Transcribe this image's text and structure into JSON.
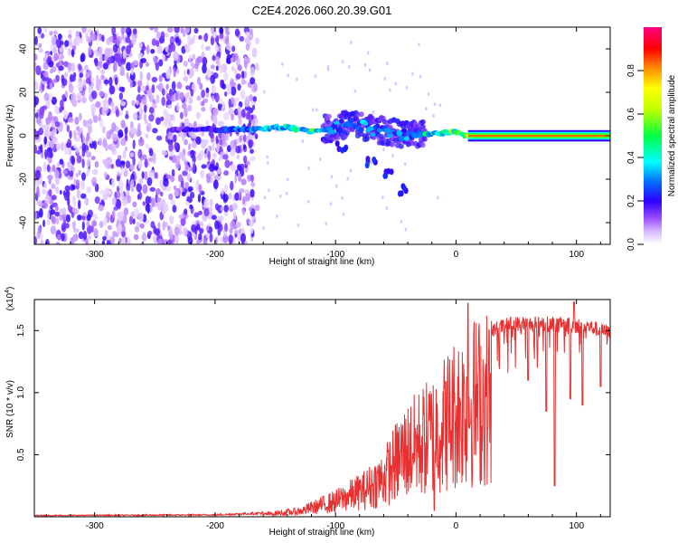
{
  "title": "C2E4.2026.060.20.39.G01",
  "chart_data": [
    {
      "type": "heatmap",
      "name": "spectrogram",
      "xlabel": "Height of straight line (km)",
      "ylabel": "Frequency (Hz)",
      "xlim": [
        -350,
        128
      ],
      "ylim": [
        -50,
        50
      ],
      "xticks": [
        -300,
        -200,
        -100,
        0,
        100
      ],
      "yticks": [
        -40,
        -20,
        0,
        20,
        40
      ],
      "colorbar": {
        "label": "Normalized spectral amplitude",
        "range": [
          0,
          1
        ],
        "ticks": [
          0.0,
          0.2,
          0.4,
          0.6,
          0.8
        ],
        "colormap": "rainbow (violet-blue-cyan-green-yellow-orange-red-magenta)"
      },
      "features": {
        "noise_region_x": [
          -350,
          -165
        ],
        "noise_amplitude": 0.15,
        "carrier_track": [
          {
            "x": -235,
            "f": 3,
            "amp": 0.15
          },
          {
            "x": -200,
            "f": 3,
            "amp": 0.25
          },
          {
            "x": -165,
            "f": 3,
            "amp": 0.35
          },
          {
            "x": -140,
            "f": 4,
            "amp": 0.4
          },
          {
            "x": -120,
            "f": 2,
            "amp": 0.5
          },
          {
            "x": -100,
            "f": 4,
            "amp": 0.3
          },
          {
            "x": -85,
            "f": 6,
            "amp": 0.3
          },
          {
            "x": -70,
            "f": 3,
            "amp": 0.35
          },
          {
            "x": -55,
            "f": 2,
            "amp": 0.3
          },
          {
            "x": -40,
            "f": 0,
            "amp": 0.35
          },
          {
            "x": -20,
            "f": 1,
            "amp": 0.5
          },
          {
            "x": 0,
            "f": 2,
            "amp": 0.55
          },
          {
            "x": 10,
            "f": 0,
            "amp": 0.7
          },
          {
            "x": 128,
            "f": 0,
            "amp": 0.9
          }
        ],
        "descending_branch": [
          {
            "x": -95,
            "f": -5
          },
          {
            "x": -70,
            "f": -12
          },
          {
            "x": -55,
            "f": -18
          },
          {
            "x": -45,
            "f": -25
          }
        ]
      }
    },
    {
      "type": "line",
      "name": "snr",
      "xlabel": "Height of straight line (km)",
      "ylabel": "SNR (10 * v/v)",
      "yscale_label": "(x10",
      "yscale_exponent": "4",
      "xlim": [
        -350,
        128
      ],
      "ylim": [
        0,
        1.75
      ],
      "xticks": [
        -300,
        -200,
        -100,
        0,
        100
      ],
      "yticks": [
        0.5,
        1.0,
        1.5
      ],
      "color": "#e83030",
      "envelope": [
        {
          "x": -350,
          "v": 0.01
        },
        {
          "x": -200,
          "v": 0.015
        },
        {
          "x": -160,
          "v": 0.03
        },
        {
          "x": -130,
          "v": 0.07
        },
        {
          "x": -100,
          "v": 0.2
        },
        {
          "x": -75,
          "v": 0.35
        },
        {
          "x": -60,
          "v": 0.5
        },
        {
          "x": -45,
          "v": 0.8
        },
        {
          "x": -30,
          "v": 0.95
        },
        {
          "x": -20,
          "v": 1.05
        },
        {
          "x": -10,
          "v": 1.2
        },
        {
          "x": 0,
          "v": 1.35
        },
        {
          "x": 10,
          "v": 1.45
        },
        {
          "x": 20,
          "v": 1.5
        },
        {
          "x": 30,
          "v": 1.55
        },
        {
          "x": 45,
          "v": 1.6
        },
        {
          "x": 80,
          "v": 1.6
        },
        {
          "x": 110,
          "v": 1.58
        },
        {
          "x": 128,
          "v": 1.52
        }
      ],
      "dips": [
        {
          "x": -18,
          "v": 0.05
        },
        {
          "x": 12,
          "v": 0.75
        },
        {
          "x": 60,
          "v": 1.1
        },
        {
          "x": 75,
          "v": 0.85
        },
        {
          "x": 82,
          "v": 0.25
        },
        {
          "x": 95,
          "v": 0.95
        },
        {
          "x": 105,
          "v": 0.9
        },
        {
          "x": 120,
          "v": 1.05
        }
      ],
      "peaks": [
        {
          "x": 10,
          "v": 1.72
        },
        {
          "x": 98,
          "v": 1.73
        }
      ]
    }
  ]
}
